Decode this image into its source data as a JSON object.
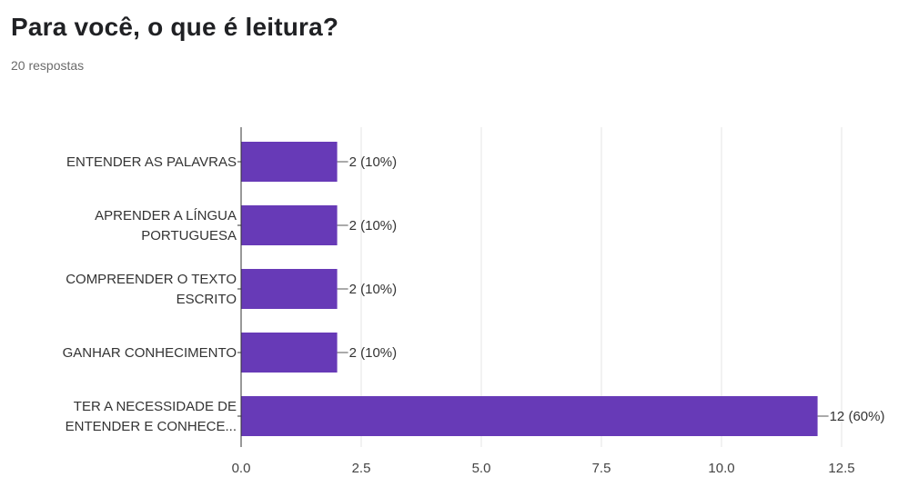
{
  "header": {
    "title": "Para você, o que é leitura?",
    "subtitle": "20 respostas"
  },
  "colors": {
    "bar": "#673ab7",
    "grid": "#e6e6e6",
    "axis": "#333333"
  },
  "chart_data": {
    "type": "bar",
    "orientation": "horizontal",
    "categories": [
      [
        "ENTENDER AS PALAVRAS"
      ],
      [
        "APRENDER A LÍNGUA",
        "PORTUGUESA"
      ],
      [
        "COMPREENDER O TEXTO",
        "ESCRITO"
      ],
      [
        "GANHAR CONHECIMENTO"
      ],
      [
        "TER A NECESSIDADE DE",
        "ENTENDER E CONHECE..."
      ]
    ],
    "values": [
      2,
      2,
      2,
      2,
      12
    ],
    "data_labels": [
      "2 (10%)",
      "2 (10%)",
      "2 (10%)",
      "2 (10%)",
      "12 (60%)"
    ],
    "xlim": [
      0,
      12.5
    ],
    "x_ticks": [
      "0.0",
      "2.5",
      "5.0",
      "7.5",
      "10.0",
      "12.5"
    ],
    "x_tick_values": [
      0,
      2.5,
      5,
      7.5,
      10,
      12.5
    ],
    "grid": true
  }
}
